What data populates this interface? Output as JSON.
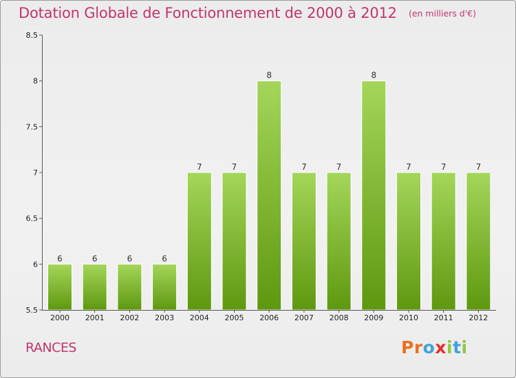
{
  "header": {
    "title": "Dotation Globale de Fonctionnement de 2000 à 2012",
    "subtitle": "(en milliers d'€)"
  },
  "footer": {
    "commune": "RANCES",
    "logo_text": "Proxiti",
    "logo_colors": [
      "#e8721f",
      "#e8721f",
      "#3fa2dc",
      "#e2312b",
      "#8dc63f",
      "#3fa2dc",
      "#8dc63f"
    ]
  },
  "colors": {
    "title": "#c0356e",
    "bar_light": "#a4d65a",
    "bar_dark": "#5e980f",
    "axis": "#555555"
  },
  "chart_data": {
    "type": "bar",
    "title": "Dotation Globale de Fonctionnement de 2000 à 2012",
    "subtitle": "(en milliers d'€)",
    "categories": [
      "2000",
      "2001",
      "2002",
      "2003",
      "2004",
      "2005",
      "2006",
      "2007",
      "2008",
      "2009",
      "2010",
      "2011",
      "2012"
    ],
    "values": [
      6,
      6,
      6,
      6,
      7,
      7,
      8,
      7,
      7,
      8,
      7,
      7,
      7
    ],
    "value_labels": [
      "6",
      "6",
      "6",
      "6",
      "7",
      "7",
      "8",
      "7",
      "7",
      "8",
      "7",
      "7",
      "7"
    ],
    "ylim": [
      5.5,
      8.5
    ],
    "yticks": [
      5.5,
      6,
      6.5,
      7,
      7.5,
      8,
      8.5
    ],
    "ytick_labels": [
      "5.5",
      "6",
      "6.5",
      "7",
      "7.5",
      "8",
      "8.5"
    ],
    "grid": false,
    "legend": "none"
  }
}
